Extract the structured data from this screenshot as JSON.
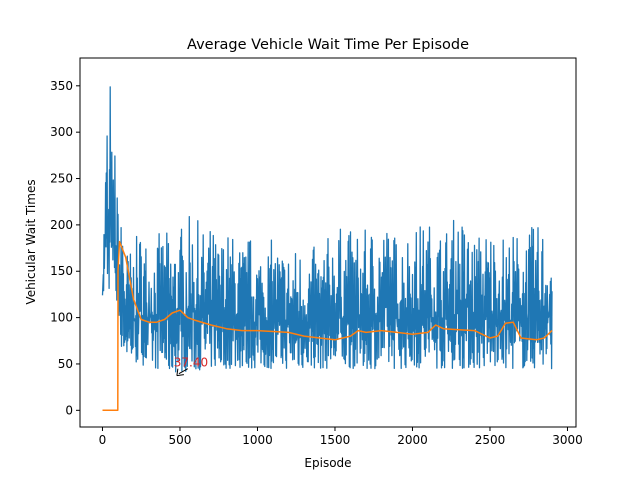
{
  "chart_data": {
    "type": "line",
    "title": "Average Vehicle Wait Time Per Episode",
    "xlabel": "Episode",
    "ylabel": "Vehicular Wait Times",
    "xlim": [
      -145,
      3055
    ],
    "ylim": [
      -18,
      380
    ],
    "xticks": [
      0,
      500,
      1000,
      1500,
      2000,
      2500,
      3000
    ],
    "yticks": [
      0,
      50,
      100,
      150,
      200,
      250,
      300,
      350
    ],
    "grid": false,
    "series": [
      {
        "color": "#1f77b4",
        "summary": "raw per-episode wait time, highly noisy",
        "x": [
          0,
          10,
          20,
          30,
          40,
          50,
          60,
          70,
          80,
          90,
          100,
          110,
          120,
          130,
          140,
          150,
          175,
          200,
          250,
          300,
          350,
          400,
          450,
          500,
          550,
          600,
          650,
          700,
          750,
          800,
          850,
          900,
          950,
          1000,
          1100,
          1200,
          1300,
          1400,
          1500,
          1600,
          1700,
          1800,
          1900,
          2000,
          2100,
          2200,
          2300,
          2400,
          2500,
          2600,
          2700,
          2800,
          2900
        ],
        "upper": [
          150,
          210,
          275,
          330,
          255,
          365,
          290,
          260,
          300,
          225,
          250,
          200,
          210,
          230,
          190,
          180,
          175,
          180,
          200,
          185,
          190,
          195,
          190,
          200,
          210,
          210,
          195,
          200,
          185,
          195,
          190,
          180,
          190,
          180,
          185,
          175,
          180,
          175,
          200,
          195,
          195,
          210,
          190,
          200,
          205,
          195,
          215,
          190,
          200,
          190,
          195,
          200,
          205
        ],
        "lower": [
          110,
          130,
          150,
          140,
          120,
          160,
          140,
          130,
          140,
          110,
          100,
          90,
          70,
          60,
          65,
          55,
          55,
          50,
          50,
          45,
          45,
          40,
          40,
          42,
          42,
          42,
          45,
          45,
          45,
          45,
          45,
          45,
          45,
          45,
          45,
          45,
          45,
          45,
          45,
          45,
          45,
          45,
          45,
          45,
          45,
          45,
          45,
          45,
          45,
          45,
          45,
          45,
          45
        ]
      },
      {
        "color": "#ff7f0e",
        "summary": "100-episode moving average",
        "x": [
          0,
          50,
          99,
          100,
          110,
          150,
          200,
          250,
          300,
          350,
          400,
          450,
          500,
          550,
          600,
          700,
          800,
          900,
          1000,
          1100,
          1200,
          1300,
          1400,
          1500,
          1600,
          1650,
          1700,
          1800,
          1900,
          2000,
          2100,
          2150,
          2200,
          2300,
          2400,
          2500,
          2550,
          2600,
          2650,
          2700,
          2800,
          2850,
          2900
        ],
        "values": [
          0,
          0,
          0,
          150,
          182,
          165,
          120,
          98,
          95,
          95,
          98,
          105,
          108,
          100,
          97,
          92,
          88,
          86,
          86,
          85,
          84,
          80,
          78,
          76,
          80,
          86,
          84,
          86,
          84,
          82,
          84,
          92,
          88,
          87,
          86,
          78,
          80,
          94,
          95,
          78,
          76,
          78,
          86
        ]
      }
    ],
    "annotation": {
      "text": "37.40",
      "color": "#d62728",
      "x": 480,
      "y": 37.4,
      "text_x": 460,
      "text_y": 47
    }
  }
}
